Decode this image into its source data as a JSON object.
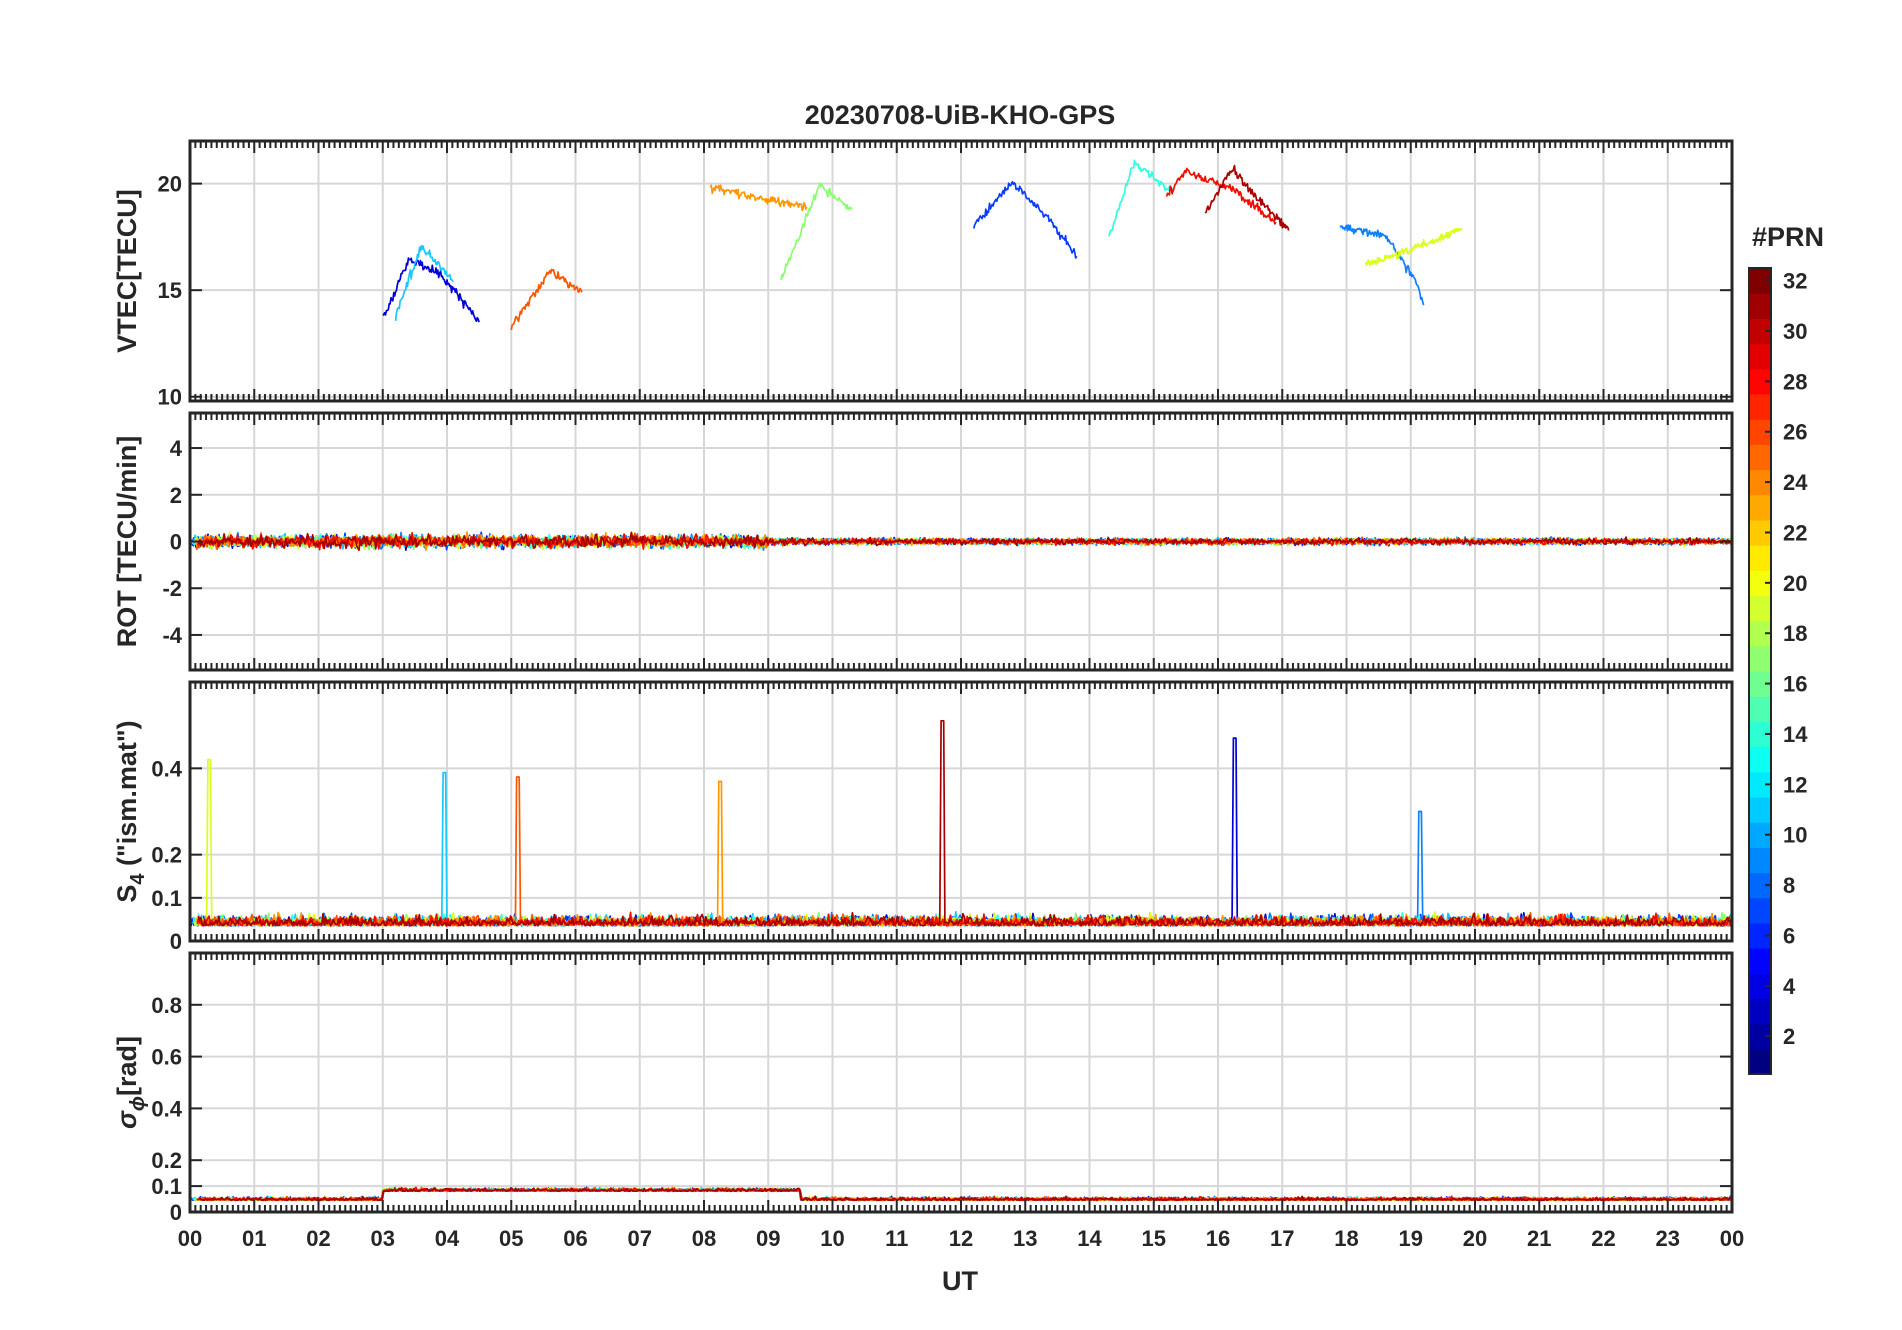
{
  "chart_data": {
    "type": "line",
    "title": "20230708-UiB-KHO-GPS",
    "xlabel": "UT",
    "x_tick_labels": [
      "00",
      "01",
      "02",
      "03",
      "04",
      "05",
      "06",
      "07",
      "08",
      "09",
      "10",
      "11",
      "12",
      "13",
      "14",
      "15",
      "16",
      "17",
      "18",
      "19",
      "20",
      "21",
      "22",
      "23",
      "00"
    ],
    "xlim": [
      0,
      24
    ],
    "panels": [
      {
        "id": "vtec",
        "ylabel": "VTEC[TECU]",
        "ylim": [
          9.8,
          22
        ],
        "yticks": [
          10,
          15,
          20
        ],
        "ytick_labels": [
          "10",
          "15",
          "20"
        ]
      },
      {
        "id": "rot",
        "ylabel": "ROT [TECU/min]",
        "ylim": [
          -5.5,
          5.5
        ],
        "yticks": [
          -4,
          -2,
          0,
          2,
          4
        ],
        "ytick_labels": [
          "-4",
          "-2",
          "0",
          "2",
          "4"
        ]
      },
      {
        "id": "s4",
        "ylabel_main": "S",
        "ylabel_sub": "4",
        "ylabel_rest": " (\"ism.mat\")",
        "ylim": [
          0,
          0.6
        ],
        "yticks": [
          0,
          0.1,
          0.2,
          0.4
        ],
        "ytick_labels": [
          "0",
          "0.1",
          "0.2",
          "0.4"
        ]
      },
      {
        "id": "sigma",
        "ylabel_main": "σ",
        "ylabel_sub": "ϕ",
        "ylabel_rest": "[rad]",
        "ylim": [
          0,
          1.0
        ],
        "yticks": [
          0,
          0.1,
          0.2,
          0.4,
          0.6,
          0.8
        ],
        "ytick_labels": [
          "0",
          "0.1",
          "0.2",
          "0.4",
          "0.6",
          "0.8"
        ]
      }
    ],
    "colorbar": {
      "label": "#PRN",
      "range": [
        1,
        32
      ],
      "ticks": [
        2,
        4,
        6,
        8,
        10,
        12,
        14,
        16,
        18,
        20,
        22,
        24,
        26,
        28,
        30,
        32
      ],
      "tick_labels": [
        "2",
        "4",
        "6",
        "8",
        "10",
        "12",
        "14",
        "16",
        "18",
        "20",
        "22",
        "24",
        "26",
        "28",
        "30",
        "32"
      ],
      "colormap": "jet",
      "levels": 32
    },
    "series": [
      {
        "prn": 2,
        "color": "#0000d8",
        "vtec": [
          [
            3.0,
            13.6
          ],
          [
            3.4,
            16.4
          ],
          [
            3.9,
            15.8
          ],
          [
            4.5,
            13.5
          ]
        ],
        "s4_spike": [
          16.25,
          0.47
        ]
      },
      {
        "prn": 5,
        "color": "#0a3cff",
        "vtec": [
          [
            12.2,
            18.0
          ],
          [
            12.8,
            20.1
          ],
          [
            13.4,
            18.2
          ],
          [
            13.8,
            16.6
          ]
        ]
      },
      {
        "prn": 8,
        "color": "#0f7fff",
        "vtec": [
          [
            17.9,
            17.9
          ],
          [
            18.6,
            17.6
          ],
          [
            19.1,
            15.3
          ],
          [
            19.2,
            14.3
          ]
        ],
        "s4_spike": [
          19.15,
          0.3
        ]
      },
      {
        "prn": 11,
        "color": "#16c8ff",
        "vtec": [
          [
            3.2,
            13.8
          ],
          [
            3.6,
            17.1
          ],
          [
            4.1,
            15.4
          ]
        ],
        "s4_spike": [
          3.95,
          0.39
        ]
      },
      {
        "prn": 14,
        "color": "#30ffe0",
        "vtec": [
          [
            14.3,
            17.5
          ],
          [
            14.7,
            21.0
          ],
          [
            15.3,
            19.6
          ]
        ]
      },
      {
        "prn": 17,
        "color": "#8aff72",
        "vtec": [
          [
            9.2,
            15.5
          ],
          [
            9.8,
            19.9
          ],
          [
            10.3,
            18.8
          ]
        ]
      },
      {
        "prn": 19,
        "color": "#dbff1c",
        "vtec": [
          [
            18.3,
            16.2
          ],
          [
            19.3,
            17.2
          ],
          [
            19.8,
            17.9
          ]
        ],
        "s4_spike": [
          0.3,
          0.42
        ]
      },
      {
        "prn": 23,
        "color": "#ff9800",
        "vtec": [
          [
            8.1,
            19.8
          ],
          [
            8.9,
            19.3
          ],
          [
            9.6,
            18.9
          ]
        ],
        "s4_spike": [
          8.25,
          0.37
        ]
      },
      {
        "prn": 25,
        "color": "#ff5500",
        "vtec": [
          [
            5.0,
            13.3
          ],
          [
            5.6,
            15.9
          ],
          [
            6.1,
            14.9
          ]
        ],
        "s4_spike": [
          5.1,
          0.38
        ]
      },
      {
        "prn": 28,
        "color": "#f20c00",
        "vtec": [
          [
            15.2,
            19.4
          ],
          [
            15.5,
            20.6
          ],
          [
            16.2,
            19.8
          ],
          [
            16.9,
            18.2
          ]
        ]
      },
      {
        "prn": 31,
        "color": "#a80000",
        "vtec": [
          [
            15.8,
            18.6
          ],
          [
            16.2,
            20.7
          ],
          [
            17.1,
            17.8
          ]
        ],
        "s4_spike": [
          11.7,
          0.51
        ]
      }
    ]
  }
}
